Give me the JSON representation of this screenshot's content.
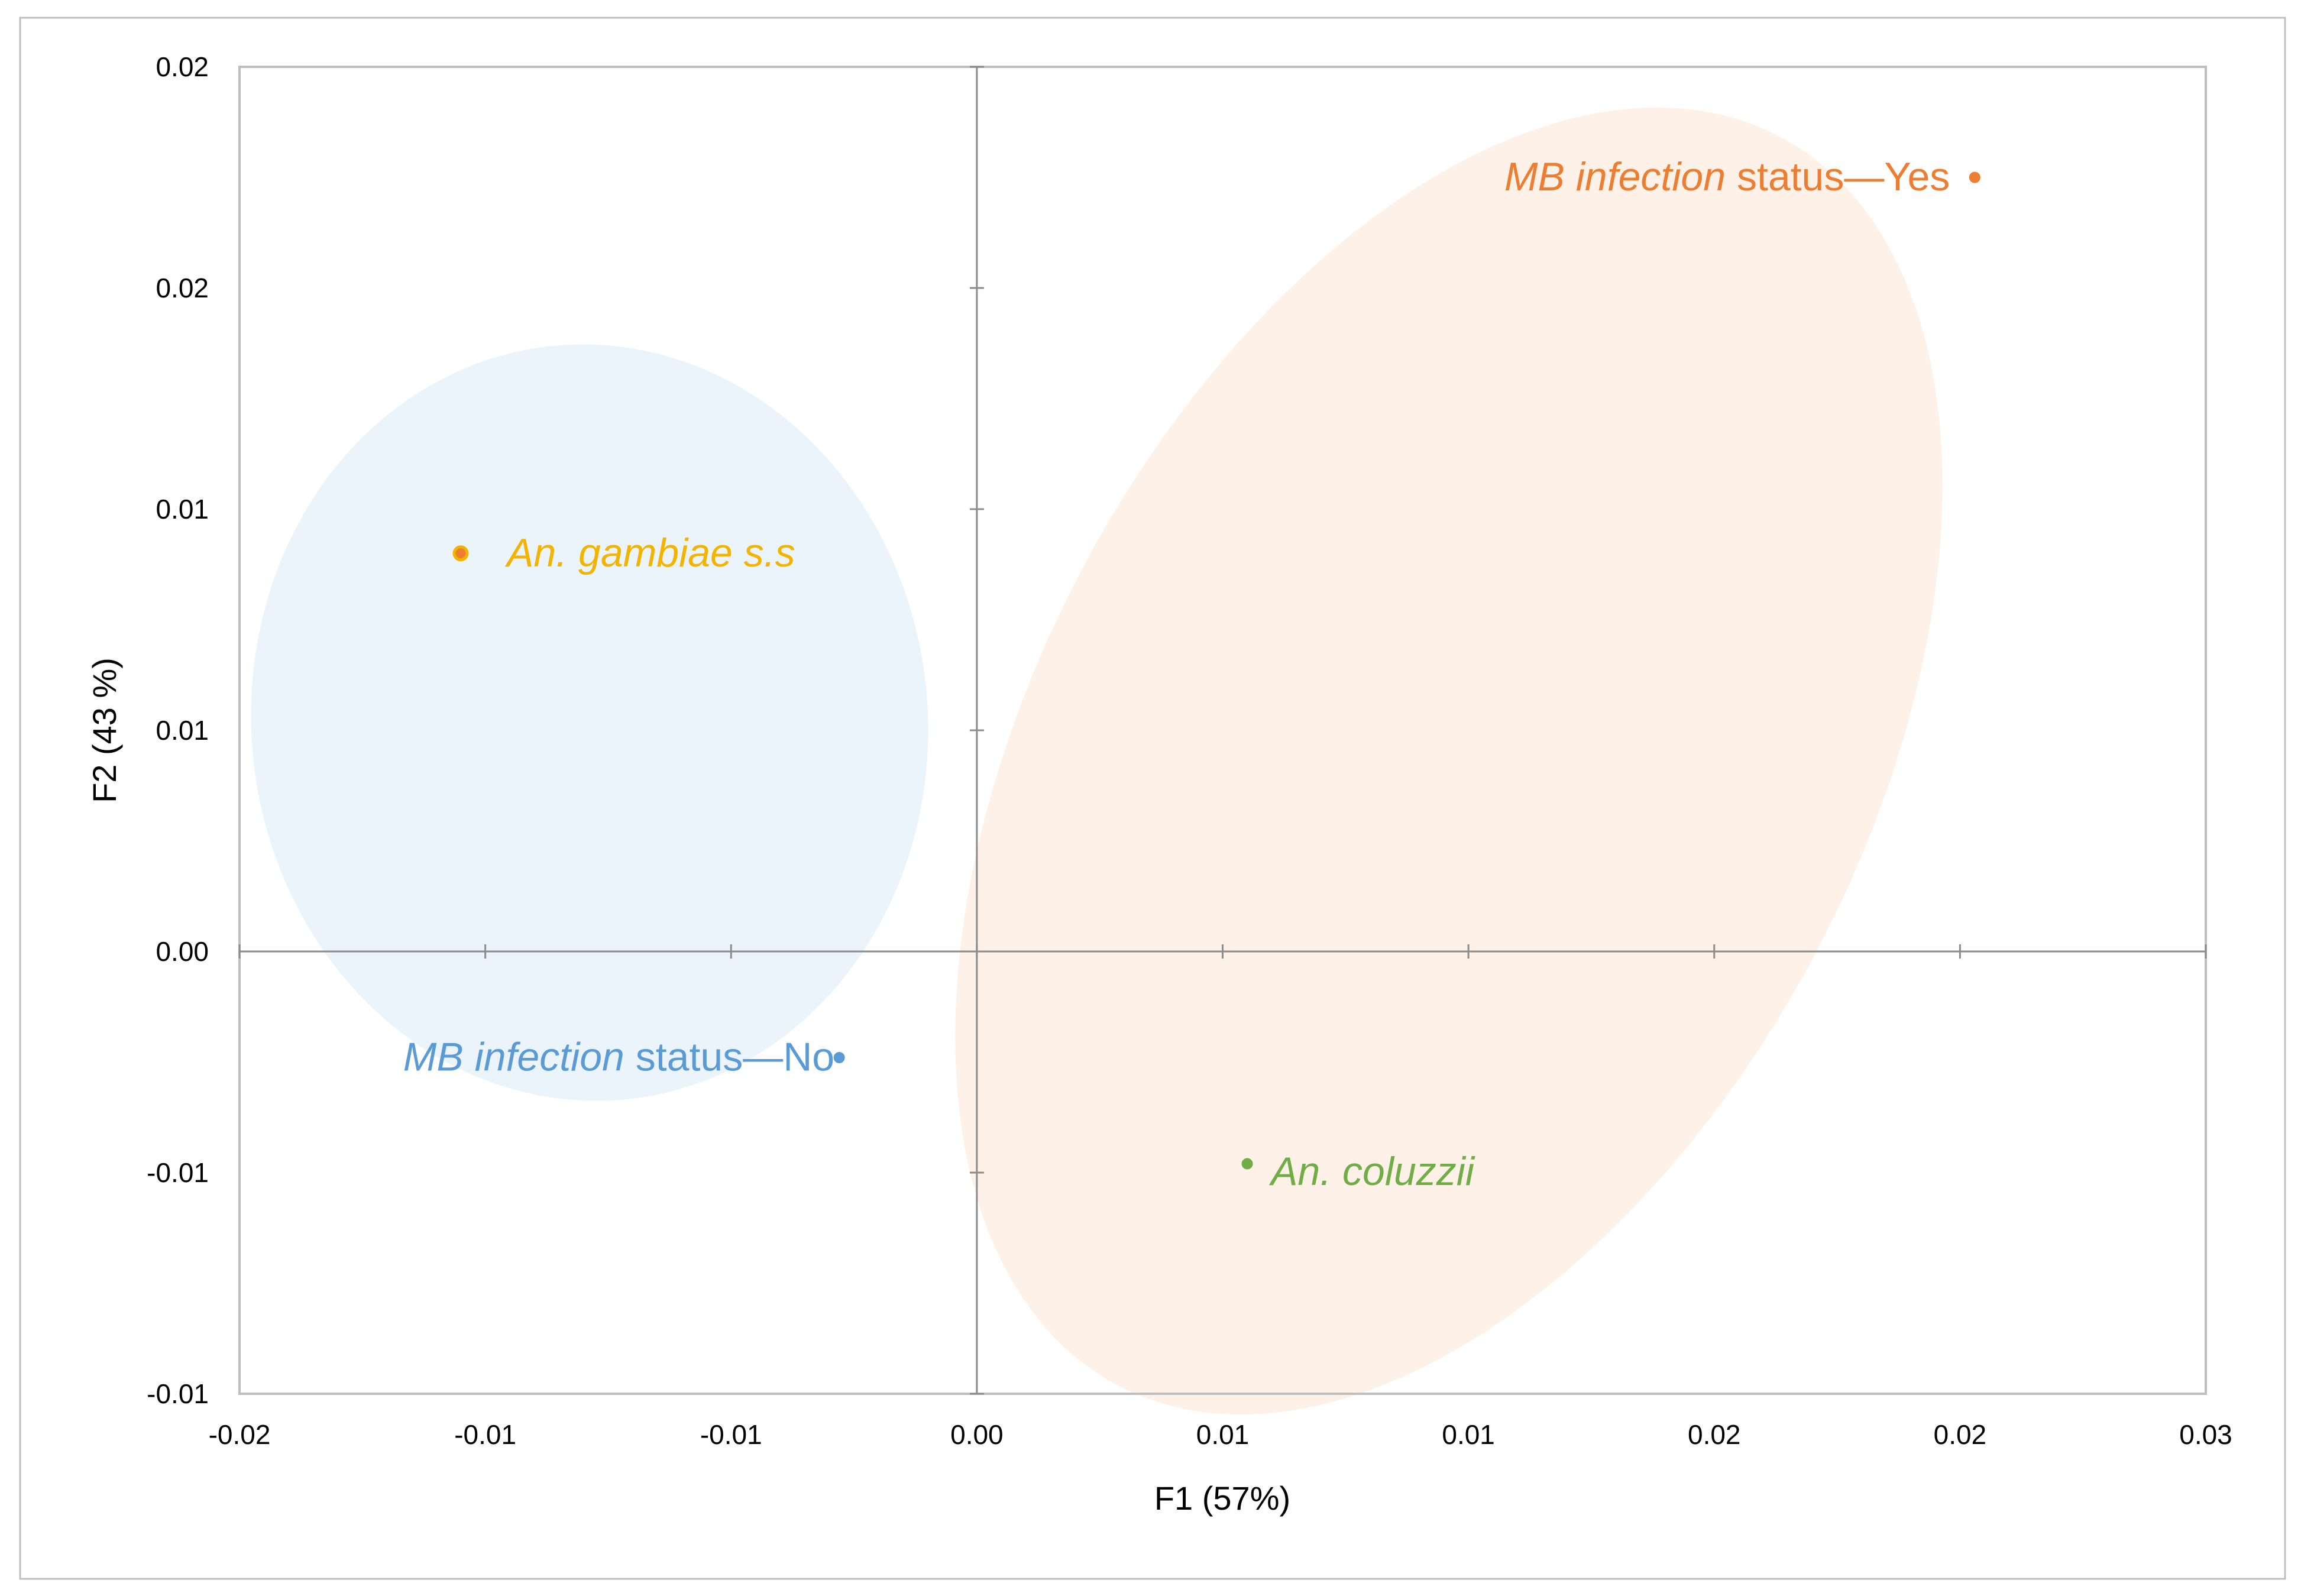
{
  "chart_data": {
    "type": "scatter",
    "xlabel": "F1 (57%)",
    "ylabel": "F2 (43 %)",
    "x_ticks": [
      "-0.02",
      "-0.01",
      "-0.01",
      "0.00",
      "0.01",
      "0.01",
      "0.02",
      "0.02",
      "0.03"
    ],
    "y_ticks": [
      "-0.01",
      "-0.01",
      "0.00",
      "0.01",
      "0.01",
      "0.02",
      "0.02"
    ],
    "xlim": [
      -0.015,
      0.025
    ],
    "ylim": [
      -0.01,
      0.02
    ],
    "grid": false,
    "points": [
      {
        "label_italic": "MB infection",
        "label_plain": " status—Yes",
        "x": 0.0203,
        "y": 0.0175,
        "color": "#ED7D31"
      },
      {
        "label_italic": "An. gambiae",
        "label_plain": " s.s",
        "x": -0.0105,
        "y": 0.009,
        "color": "#ED7D31",
        "label_color": "#F2B400"
      },
      {
        "label_italic": "MB infection",
        "label_plain": " status—No",
        "x": -0.0028,
        "y": -0.0024,
        "color": "#5B9BD5"
      },
      {
        "label_italic": "An. coluzzii",
        "label_plain": "",
        "x": 0.0055,
        "y": -0.0048,
        "color": "#70AD47"
      }
    ],
    "ellipses": [
      {
        "group": "No",
        "color": "#DDEBF7"
      },
      {
        "group": "Yes",
        "color": "#FBE5D6"
      }
    ]
  }
}
